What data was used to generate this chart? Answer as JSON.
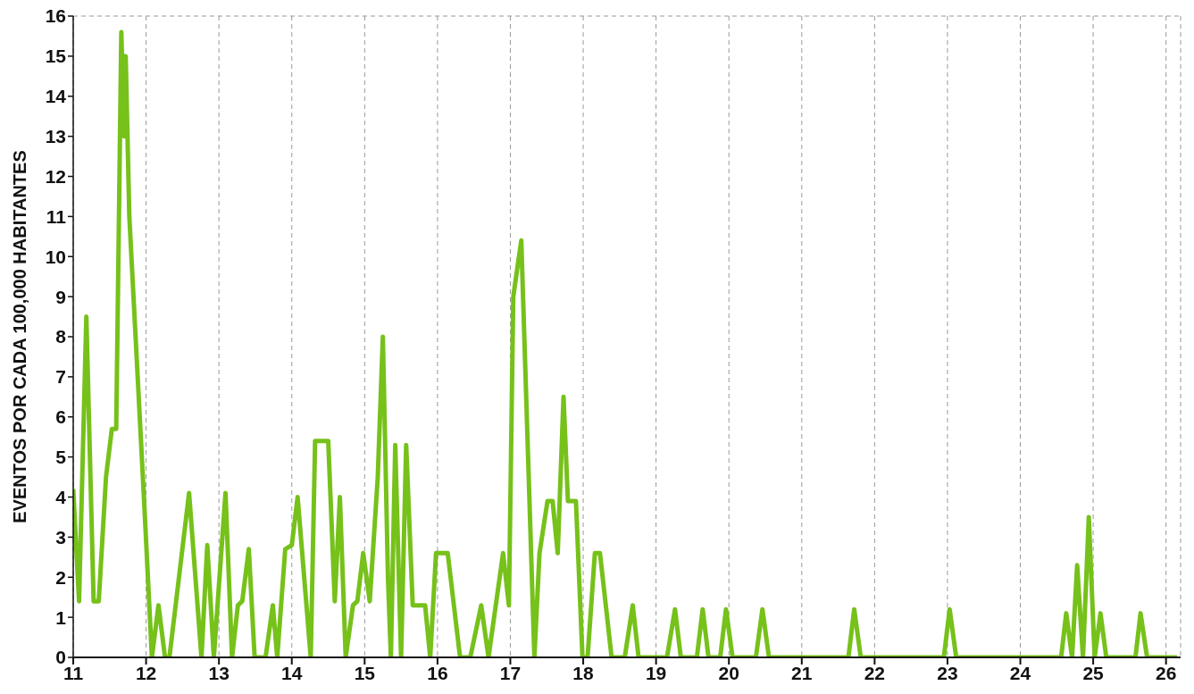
{
  "chart_data": {
    "type": "line",
    "ylabel": "EVENTOS POR CADA 100,000 HABITANTES",
    "xlim": [
      11,
      26.2
    ],
    "xticks": [
      11,
      12,
      13,
      14,
      15,
      16,
      17,
      18,
      19,
      20,
      21,
      22,
      23,
      24,
      25,
      26
    ],
    "ylim": [
      0,
      16
    ],
    "yticks": [
      0,
      1,
      2,
      3,
      4,
      5,
      6,
      7,
      8,
      9,
      10,
      11,
      12,
      13,
      14,
      15,
      16
    ],
    "grid": true,
    "marker": "none",
    "line_style": "solid",
    "x": [
      11.0,
      11.08,
      11.18,
      11.28,
      11.35,
      11.45,
      11.53,
      11.59,
      11.66,
      11.7,
      11.72,
      11.77,
      11.97,
      12.08,
      12.17,
      12.26,
      12.32,
      12.59,
      12.76,
      12.84,
      12.93,
      13.09,
      13.18,
      13.26,
      13.32,
      13.41,
      13.49,
      13.64,
      13.74,
      13.8,
      13.91,
      14.0,
      14.08,
      14.26,
      14.32,
      14.5,
      14.59,
      14.66,
      14.74,
      14.84,
      14.9,
      14.98,
      15.07,
      15.18,
      15.25,
      15.32,
      15.36,
      15.42,
      15.5,
      15.57,
      15.66,
      15.83,
      15.9,
      15.98,
      16.14,
      16.31,
      16.45,
      16.6,
      16.7,
      16.9,
      16.98,
      17.04,
      17.15,
      17.33,
      17.4,
      17.51,
      17.58,
      17.65,
      17.73,
      17.79,
      17.9,
      17.99,
      18.06,
      18.16,
      18.23,
      18.39,
      18.57,
      18.68,
      18.76,
      19.15,
      19.26,
      19.34,
      19.56,
      19.64,
      19.72,
      19.88,
      19.96,
      20.05,
      20.37,
      20.46,
      20.55,
      21.64,
      21.72,
      21.81,
      22.95,
      23.03,
      23.12,
      24.56,
      24.63,
      24.71,
      24.78,
      24.86,
      24.94,
      25.02,
      25.1,
      25.18,
      25.58,
      25.65,
      25.74,
      26.15
    ],
    "series": [
      {
        "color": "#76c11a",
        "values": [
          4.2,
          1.4,
          8.5,
          1.4,
          1.4,
          4.5,
          5.7,
          5.7,
          15.6,
          13,
          15,
          11,
          4,
          0,
          1.3,
          0,
          0,
          4.1,
          0,
          2.8,
          0,
          4.1,
          0,
          1.3,
          1.4,
          2.7,
          0,
          0,
          1.3,
          0,
          2.7,
          2.8,
          4.0,
          0,
          5.4,
          5.4,
          1.4,
          4.0,
          0,
          1.3,
          1.4,
          2.6,
          1.4,
          4.5,
          8.0,
          2.0,
          0,
          5.3,
          0,
          5.3,
          1.3,
          1.3,
          0,
          2.6,
          2.6,
          0,
          0,
          1.3,
          0,
          2.6,
          1.3,
          9,
          10.4,
          0,
          2.6,
          3.9,
          3.9,
          2.6,
          6.5,
          3.9,
          3.9,
          0,
          0,
          2.6,
          2.6,
          0,
          0,
          1.3,
          0,
          0,
          1.2,
          0,
          0,
          1.2,
          0,
          0,
          1.2,
          0,
          0,
          1.2,
          0,
          0,
          1.2,
          0,
          0,
          1.2,
          0,
          0,
          1.1,
          0,
          2.3,
          0,
          3.5,
          0,
          1.1,
          0,
          0,
          1.1,
          0,
          0
        ]
      }
    ]
  }
}
